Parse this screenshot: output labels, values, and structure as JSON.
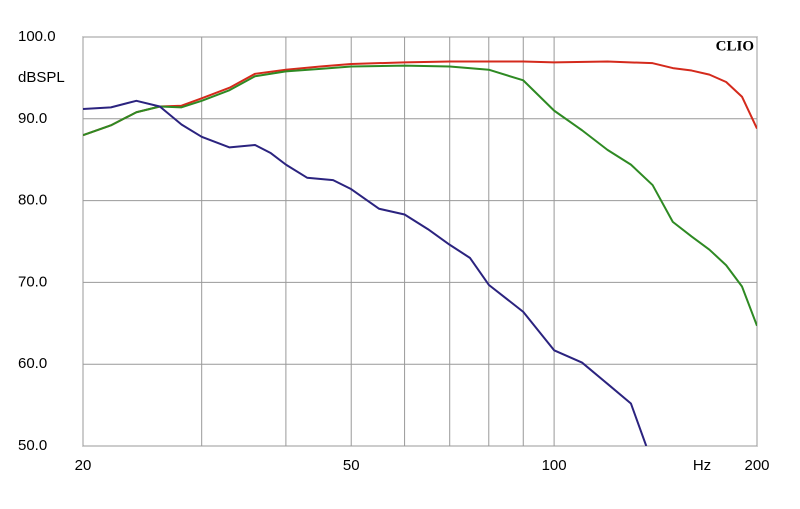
{
  "chart_data": {
    "type": "line",
    "y_label": "dBSPL",
    "x_label": "Hz",
    "annotation": "CLIO",
    "log_x": true,
    "grid": true,
    "xlim": [
      20,
      200
    ],
    "xticks": [
      20,
      50,
      100,
      200
    ],
    "xgrid": [
      30,
      40,
      60,
      70,
      80,
      90
    ],
    "ylim": [
      50,
      100
    ],
    "yticks": [
      {
        "value": 50,
        "label": "50.0"
      },
      {
        "value": 60,
        "label": "60.0"
      },
      {
        "value": 70,
        "label": "70.0"
      },
      {
        "value": 80,
        "label": "80.0"
      },
      {
        "value": 90,
        "label": "90.0"
      },
      {
        "value": 100,
        "label": "100.0"
      }
    ],
    "series": [
      {
        "color": "#d42a1c",
        "x": [
          20,
          22,
          24,
          26,
          28,
          30,
          33,
          36,
          40,
          45,
          50,
          60,
          70,
          80,
          90,
          100,
          120,
          140,
          150,
          160,
          170,
          180,
          190,
          200
        ],
        "values": [
          88.0,
          89.2,
          90.8,
          91.5,
          91.6,
          92.5,
          93.8,
          95.5,
          96.0,
          96.4,
          96.7,
          96.9,
          97.0,
          97.0,
          97.0,
          96.9,
          97.0,
          96.8,
          96.2,
          95.9,
          95.4,
          94.5,
          92.7,
          88.8
        ]
      },
      {
        "color": "#2e8a23",
        "x": [
          20,
          22,
          24,
          26,
          28,
          30,
          33,
          36,
          40,
          45,
          50,
          60,
          70,
          80,
          90,
          100,
          110,
          120,
          130,
          140,
          150,
          160,
          170,
          180,
          190,
          200
        ],
        "values": [
          88.0,
          89.2,
          90.8,
          91.5,
          91.4,
          92.2,
          93.5,
          95.2,
          95.8,
          96.1,
          96.4,
          96.5,
          96.4,
          96.0,
          94.7,
          91.0,
          88.6,
          86.2,
          84.4,
          81.9,
          77.4,
          75.6,
          74.0,
          72.1,
          69.5,
          64.7
        ]
      },
      {
        "color": "#2b237f",
        "x": [
          20,
          22,
          24,
          26,
          28,
          30,
          33,
          36,
          38,
          40,
          43,
          47,
          50,
          55,
          60,
          65,
          70,
          75,
          80,
          90,
          100,
          110,
          120,
          130,
          137
        ],
        "values": [
          91.2,
          91.4,
          92.2,
          91.5,
          89.3,
          87.8,
          86.5,
          86.8,
          85.8,
          84.4,
          82.8,
          82.5,
          81.4,
          79.0,
          78.3,
          76.5,
          74.6,
          73.0,
          69.7,
          66.4,
          61.7,
          60.2,
          57.6,
          55.2,
          50.0
        ]
      }
    ]
  }
}
